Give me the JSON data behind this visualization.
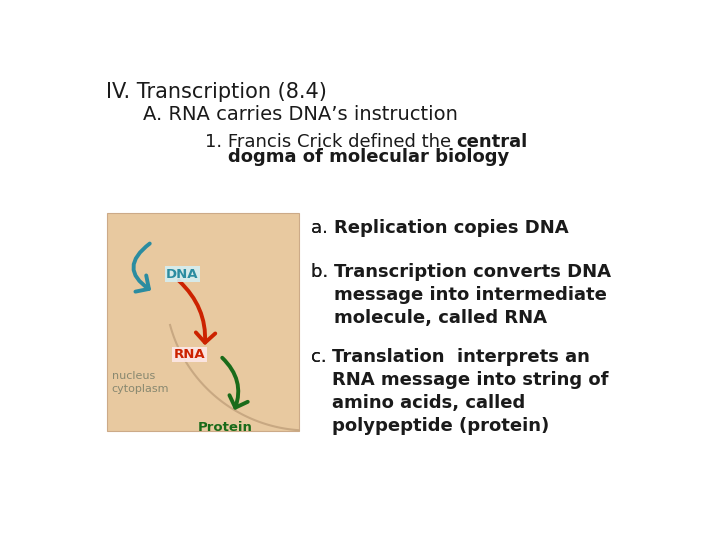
{
  "title1": "IV. Transcription (8.4)",
  "title2": "A. RNA carries DNA’s instruction",
  "line1_normal": "1. Francis Crick defined the ",
  "line1_bold": "central",
  "line2_bold": "dogma of molecular biology",
  "a_label": "a. ",
  "a_bold": "Replication copies DNA",
  "b_label": "b. ",
  "b_bold": "Transcription converts DNA\nmessage into intermediate\nmolecule, called RNA",
  "c_label": "c. ",
  "c_bold": "Translation  interprets an\nRNA message into string of\namino acids, called\npolypeptide (protein)",
  "bg_color": "#ffffff",
  "text_color": "#1a1a1a",
  "dna_label": "DNA",
  "rna_label": "RNA",
  "protein_label": "Protein",
  "nucleus_label": "nucleus",
  "cytoplasm_label": "cytoplasm",
  "cell_bg": "#e8c9a0",
  "nucleus_arc_color": "#c8a882",
  "dna_color": "#2b8ca0",
  "rna_color": "#cc2200",
  "protein_color": "#1a6b1a",
  "cell_border": "#ccaa88",
  "title1_size": 15,
  "title2_size": 14,
  "line1_size": 13,
  "abc_size": 13,
  "label_size": 9,
  "nucleus_label_color": "#888870",
  "cytoplasm_label_color": "#888870"
}
